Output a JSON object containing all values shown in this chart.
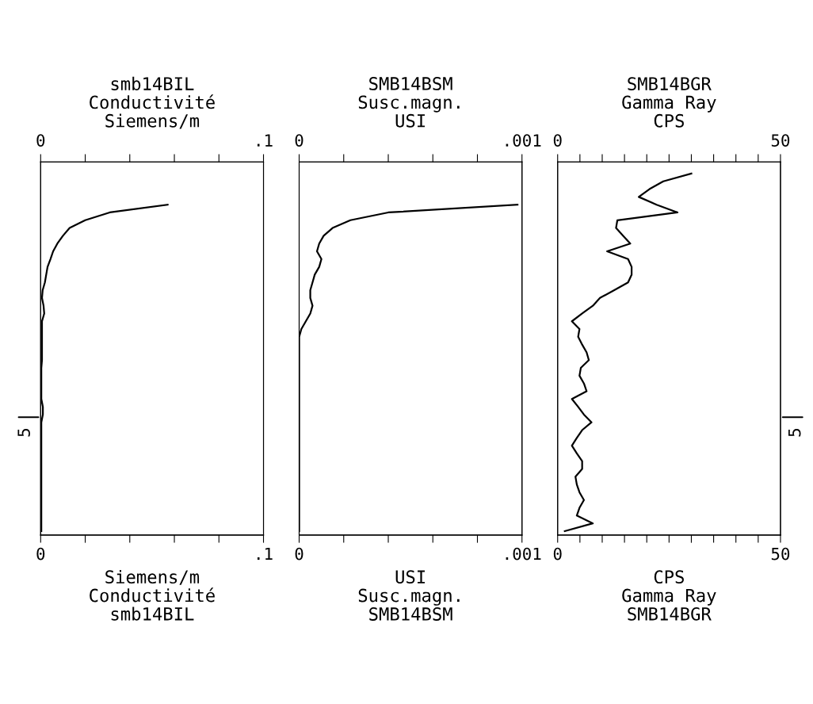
{
  "chart_data": [
    {
      "type": "line",
      "orientation": "horizontal",
      "tick_labels": "x",
      "grid": false,
      "marker": "none",
      "line_style": "solid",
      "annotations": [
        "5"
      ],
      "x2label": "smb14BIL\nConductivité\nSiemens/m",
      "xlabel": "Siemens/m\nConductivité\nsmb14BIL",
      "xlim": [
        0,
        0.1
      ],
      "xticks": [
        0,
        {
          "value": 0.02,
          "label": null
        },
        {
          "value": 0.04,
          "label": null
        },
        {
          "value": 0.06,
          "label": null
        },
        {
          "value": 0.08,
          "label": null
        },
        {
          "value": 0.1,
          "label": ".1"
        }
      ],
      "x2lim": [
        0,
        0.1
      ],
      "x2ticks": [
        0,
        {
          "value": 0.02,
          "label": null
        },
        {
          "value": 0.04,
          "label": null
        },
        {
          "value": 0.06,
          "label": null
        },
        {
          "value": 0.08,
          "label": null
        },
        {
          "value": 0.1,
          "label": ".1"
        }
      ],
      "categories": [
        null,
        null,
        null,
        null,
        null,
        null,
        null,
        null,
        null,
        null,
        null,
        null,
        null,
        null,
        null,
        null,
        null,
        null,
        null,
        null,
        null,
        null,
        null,
        null,
        null,
        null,
        null,
        null,
        null,
        null,
        null,
        null,
        null,
        null,
        null,
        null,
        null,
        null,
        null,
        null,
        null,
        null,
        null,
        null,
        null,
        null,
        null,
        null
      ],
      "series": [
        {
          "color": "#000000",
          "values": [
            null,
            null,
            null,
            null,
            null,
            0.057,
            0.031,
            0.02,
            0.013,
            0.01,
            0.0075,
            0.0056,
            0.0044,
            0.0031,
            0.0025,
            0.0019,
            0.0009,
            0.0006,
            0.0013,
            0.0016,
            0.0006,
            0.0006,
            0.0006,
            0.0006,
            0.0006,
            0.0006,
            0.0003,
            0.0003,
            0.0003,
            0.0003,
            0.0003,
            0.001,
            0.001,
            0.0003,
            0.0003,
            0.0003,
            0.0003,
            0.0003,
            0.0003,
            0.0003,
            0.0003,
            0.0003,
            0.0003,
            0.0003,
            0.0003,
            0.0003,
            0.0003,
            0.0003
          ]
        }
      ]
    },
    {
      "type": "line",
      "orientation": "horizontal",
      "tick_labels": "x",
      "grid": false,
      "marker": "none",
      "line_style": "solid",
      "x2label": "SMB14BSM\nSusc.magn.\nUSI",
      "xlabel": "USI\nSusc.magn.\nSMB14BSM",
      "xlim": [
        0,
        0.001
      ],
      "xticks": [
        0,
        {
          "value": 0.0002,
          "label": null
        },
        {
          "value": 0.0004,
          "label": null
        },
        {
          "value": 0.0006,
          "label": null
        },
        {
          "value": 0.0008,
          "label": null
        },
        {
          "value": 0.001,
          "label": ".001"
        }
      ],
      "x2lim": [
        0,
        0.001
      ],
      "x2ticks": [
        0,
        {
          "value": 0.0002,
          "label": null
        },
        {
          "value": 0.0004,
          "label": null
        },
        {
          "value": 0.0006,
          "label": null
        },
        {
          "value": 0.0008,
          "label": null
        },
        {
          "value": 0.001,
          "label": ".001"
        }
      ],
      "categories": [
        null,
        null,
        null,
        null,
        null,
        null,
        null,
        null,
        null,
        null,
        null,
        null,
        null,
        null,
        null,
        null,
        null,
        null,
        null,
        null,
        null,
        null,
        null,
        null,
        null,
        null,
        null,
        null,
        null,
        null,
        null,
        null,
        null,
        null,
        null,
        null,
        null,
        null,
        null,
        null,
        null,
        null,
        null,
        null,
        null,
        null,
        null,
        null
      ],
      "series": [
        {
          "color": "#000000",
          "values": [
            null,
            null,
            null,
            null,
            null,
            0.00098,
            0.0004,
            0.00023,
            0.00015,
            0.00011,
            9e-05,
            8e-05,
            0.0001,
            9e-05,
            7e-05,
            6e-05,
            5e-05,
            5e-05,
            6e-05,
            5e-05,
            3e-05,
            1e-05,
            0.0,
            0.0,
            0.0,
            0.0,
            0.0,
            0.0,
            0.0,
            0.0,
            0.0,
            0.0,
            0.0,
            0.0,
            0.0,
            0.0,
            0.0,
            0.0,
            0.0,
            0.0,
            0.0,
            0.0,
            0.0,
            0.0,
            0.0,
            0.0,
            0.0,
            0.0
          ]
        }
      ]
    },
    {
      "type": "line",
      "orientation": "horizontal",
      "tick_labels": "x",
      "grid": false,
      "marker": "none",
      "line_style": "solid",
      "annotations": [
        "5"
      ],
      "x2label": "SMB14BGR\nGamma Ray\nCPS",
      "xlabel": "CPS\nGamma Ray\nSMB14BGR",
      "xlim": [
        0,
        50
      ],
      "xticks": [
        0,
        {
          "value": 5,
          "label": null
        },
        {
          "value": 10,
          "label": null
        },
        {
          "value": 15,
          "label": null
        },
        {
          "value": 20,
          "label": null
        },
        {
          "value": 25,
          "label": null
        },
        {
          "value": 30,
          "label": null
        },
        {
          "value": 35,
          "label": null
        },
        {
          "value": 40,
          "label": null
        },
        {
          "value": 45,
          "label": null
        },
        50
      ],
      "x2lim": [
        0,
        50
      ],
      "x2ticks": [
        0,
        {
          "value": 5,
          "label": null
        },
        {
          "value": 10,
          "label": null
        },
        {
          "value": 15,
          "label": null
        },
        {
          "value": 20,
          "label": null
        },
        {
          "value": 25,
          "label": null
        },
        {
          "value": 30,
          "label": null
        },
        {
          "value": 35,
          "label": null
        },
        {
          "value": 40,
          "label": null
        },
        {
          "value": 45,
          "label": null
        },
        50
      ],
      "categories": [
        null,
        null,
        null,
        null,
        null,
        null,
        null,
        null,
        null,
        null,
        null,
        null,
        null,
        null,
        null,
        null,
        null,
        null,
        null,
        null,
        null,
        null,
        null,
        null,
        null,
        null,
        null,
        null,
        null,
        null,
        null,
        null,
        null,
        null,
        null,
        null,
        null,
        null,
        null,
        null,
        null,
        null,
        null,
        null,
        null,
        null,
        null,
        null
      ],
      "series": [
        {
          "color": "#000000",
          "values": [
            null,
            30,
            23.7,
            20.6,
            18.2,
            22.2,
            26.9,
            13.4,
            13.1,
            14.7,
            16.3,
            11.1,
            15.8,
            16.6,
            16.6,
            15.8,
            12.7,
            9.5,
            7.9,
            5.5,
            3.2,
            4.9,
            4.6,
            5.5,
            6.5,
            7.0,
            5.2,
            4.9,
            5.9,
            6.5,
            3.2,
            4.6,
            5.9,
            7.6,
            5.5,
            4.3,
            3.2,
            4.3,
            5.5,
            5.5,
            4.0,
            4.3,
            4.9,
            5.9,
            4.9,
            4.3,
            7.9,
            1.6
          ]
        }
      ]
    }
  ]
}
